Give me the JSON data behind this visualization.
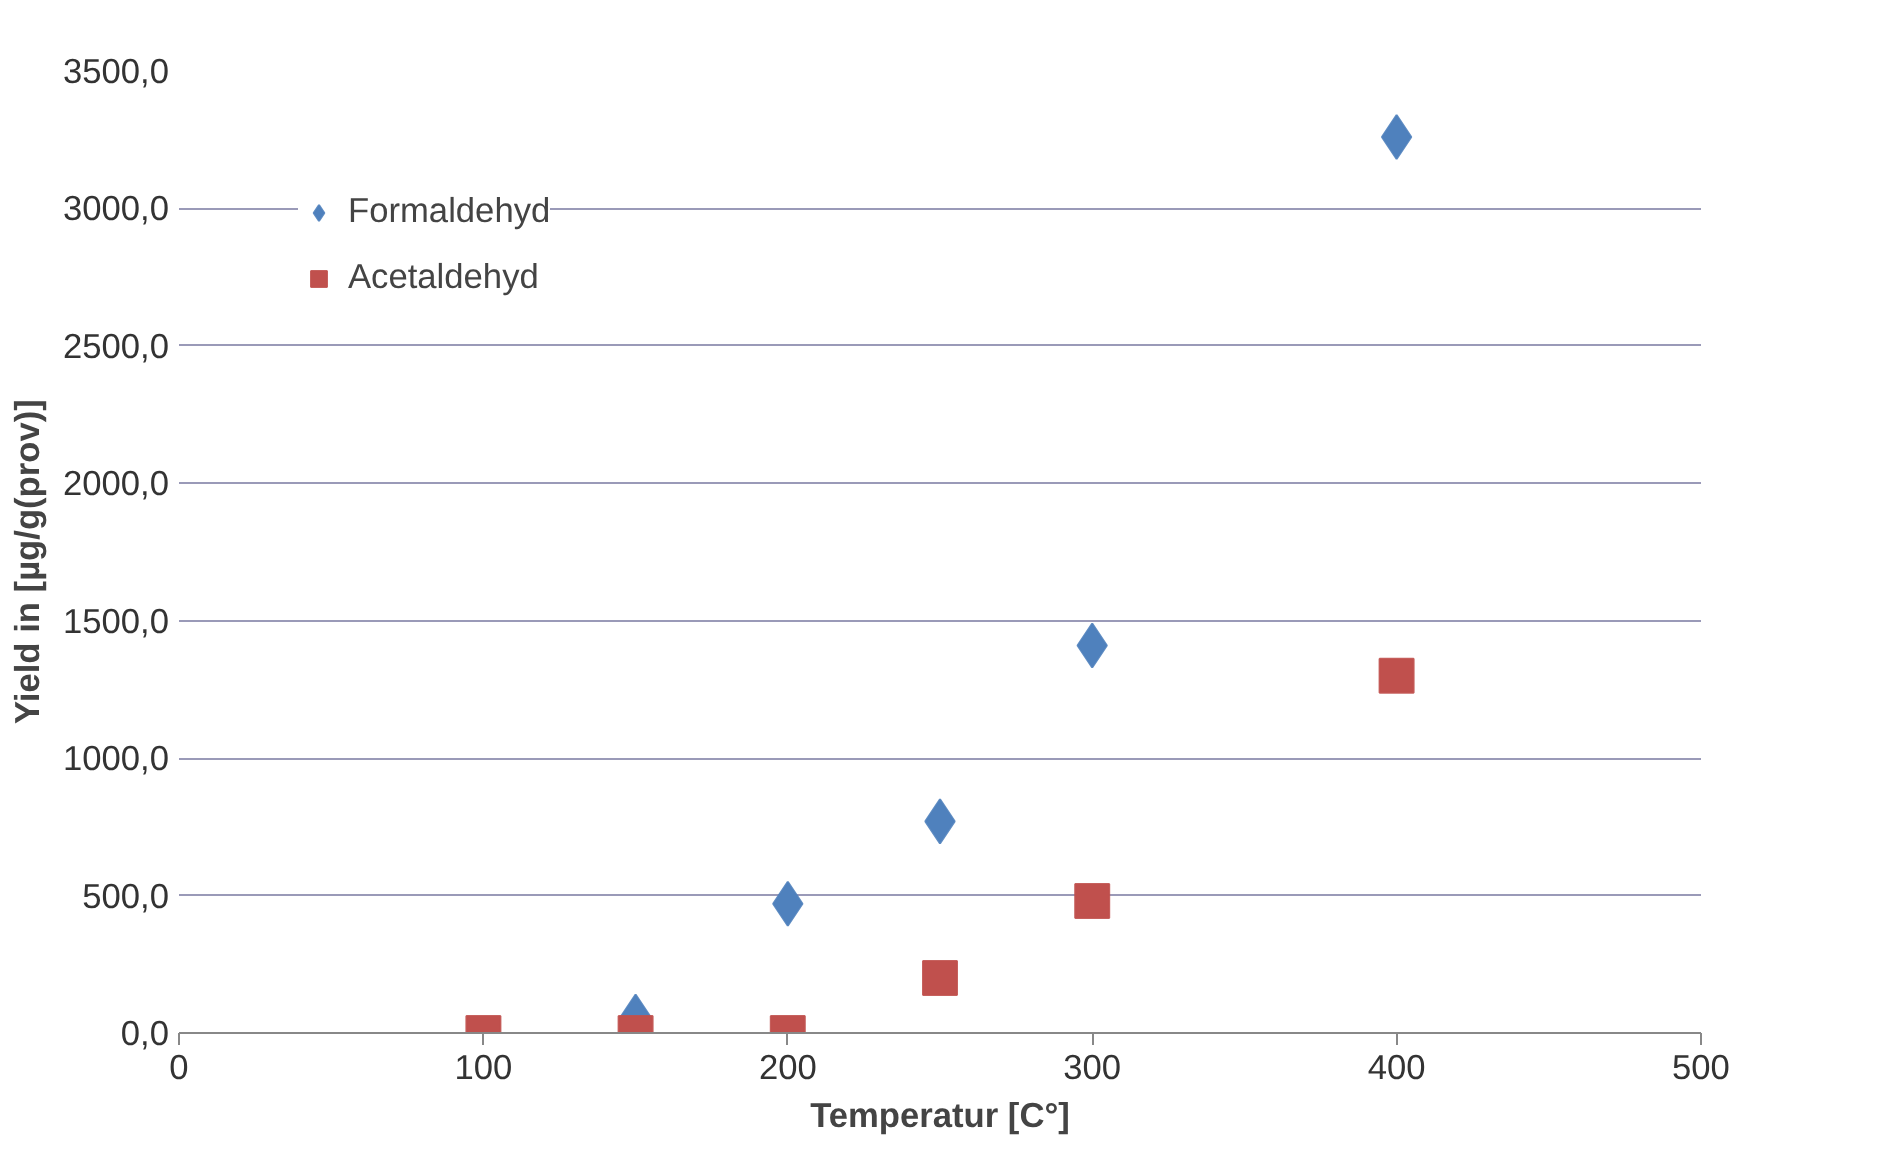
{
  "chart_data": {
    "type": "scatter",
    "xlabel": "Temperatur [C°]",
    "ylabel": "Yield in   [µg/g(prov)]",
    "series": [
      {
        "name": "Formaldehyd",
        "color": "#4f81bd",
        "marker": "diamond",
        "x": [
          150,
          200,
          250,
          300,
          400
        ],
        "values": [
          60,
          470,
          770,
          1410,
          3260
        ]
      },
      {
        "name": "Acetaldehyd",
        "color": "#c0504d",
        "marker": "square",
        "x": [
          100,
          150,
          200,
          250,
          300,
          400
        ],
        "values": [
          0,
          0,
          0,
          200,
          480,
          1300
        ]
      }
    ],
    "xlim": [
      0,
      500
    ],
    "xticks": [
      0,
      100,
      200,
      300,
      400,
      500
    ],
    "ylim": [
      0,
      3500
    ],
    "yticks": [
      {
        "value": 0,
        "label": "0,0"
      },
      {
        "value": 500,
        "label": "500,0"
      },
      {
        "value": 1000,
        "label": "1000,0"
      },
      {
        "value": 1500,
        "label": "1500,0"
      },
      {
        "value": 2000,
        "label": "2000,0"
      },
      {
        "value": 2500,
        "label": "2500,0"
      },
      {
        "value": 3000,
        "label": "3000,0"
      },
      {
        "value": 3500,
        "label": "3500,0"
      }
    ],
    "grid": "y",
    "legend": "top left"
  }
}
